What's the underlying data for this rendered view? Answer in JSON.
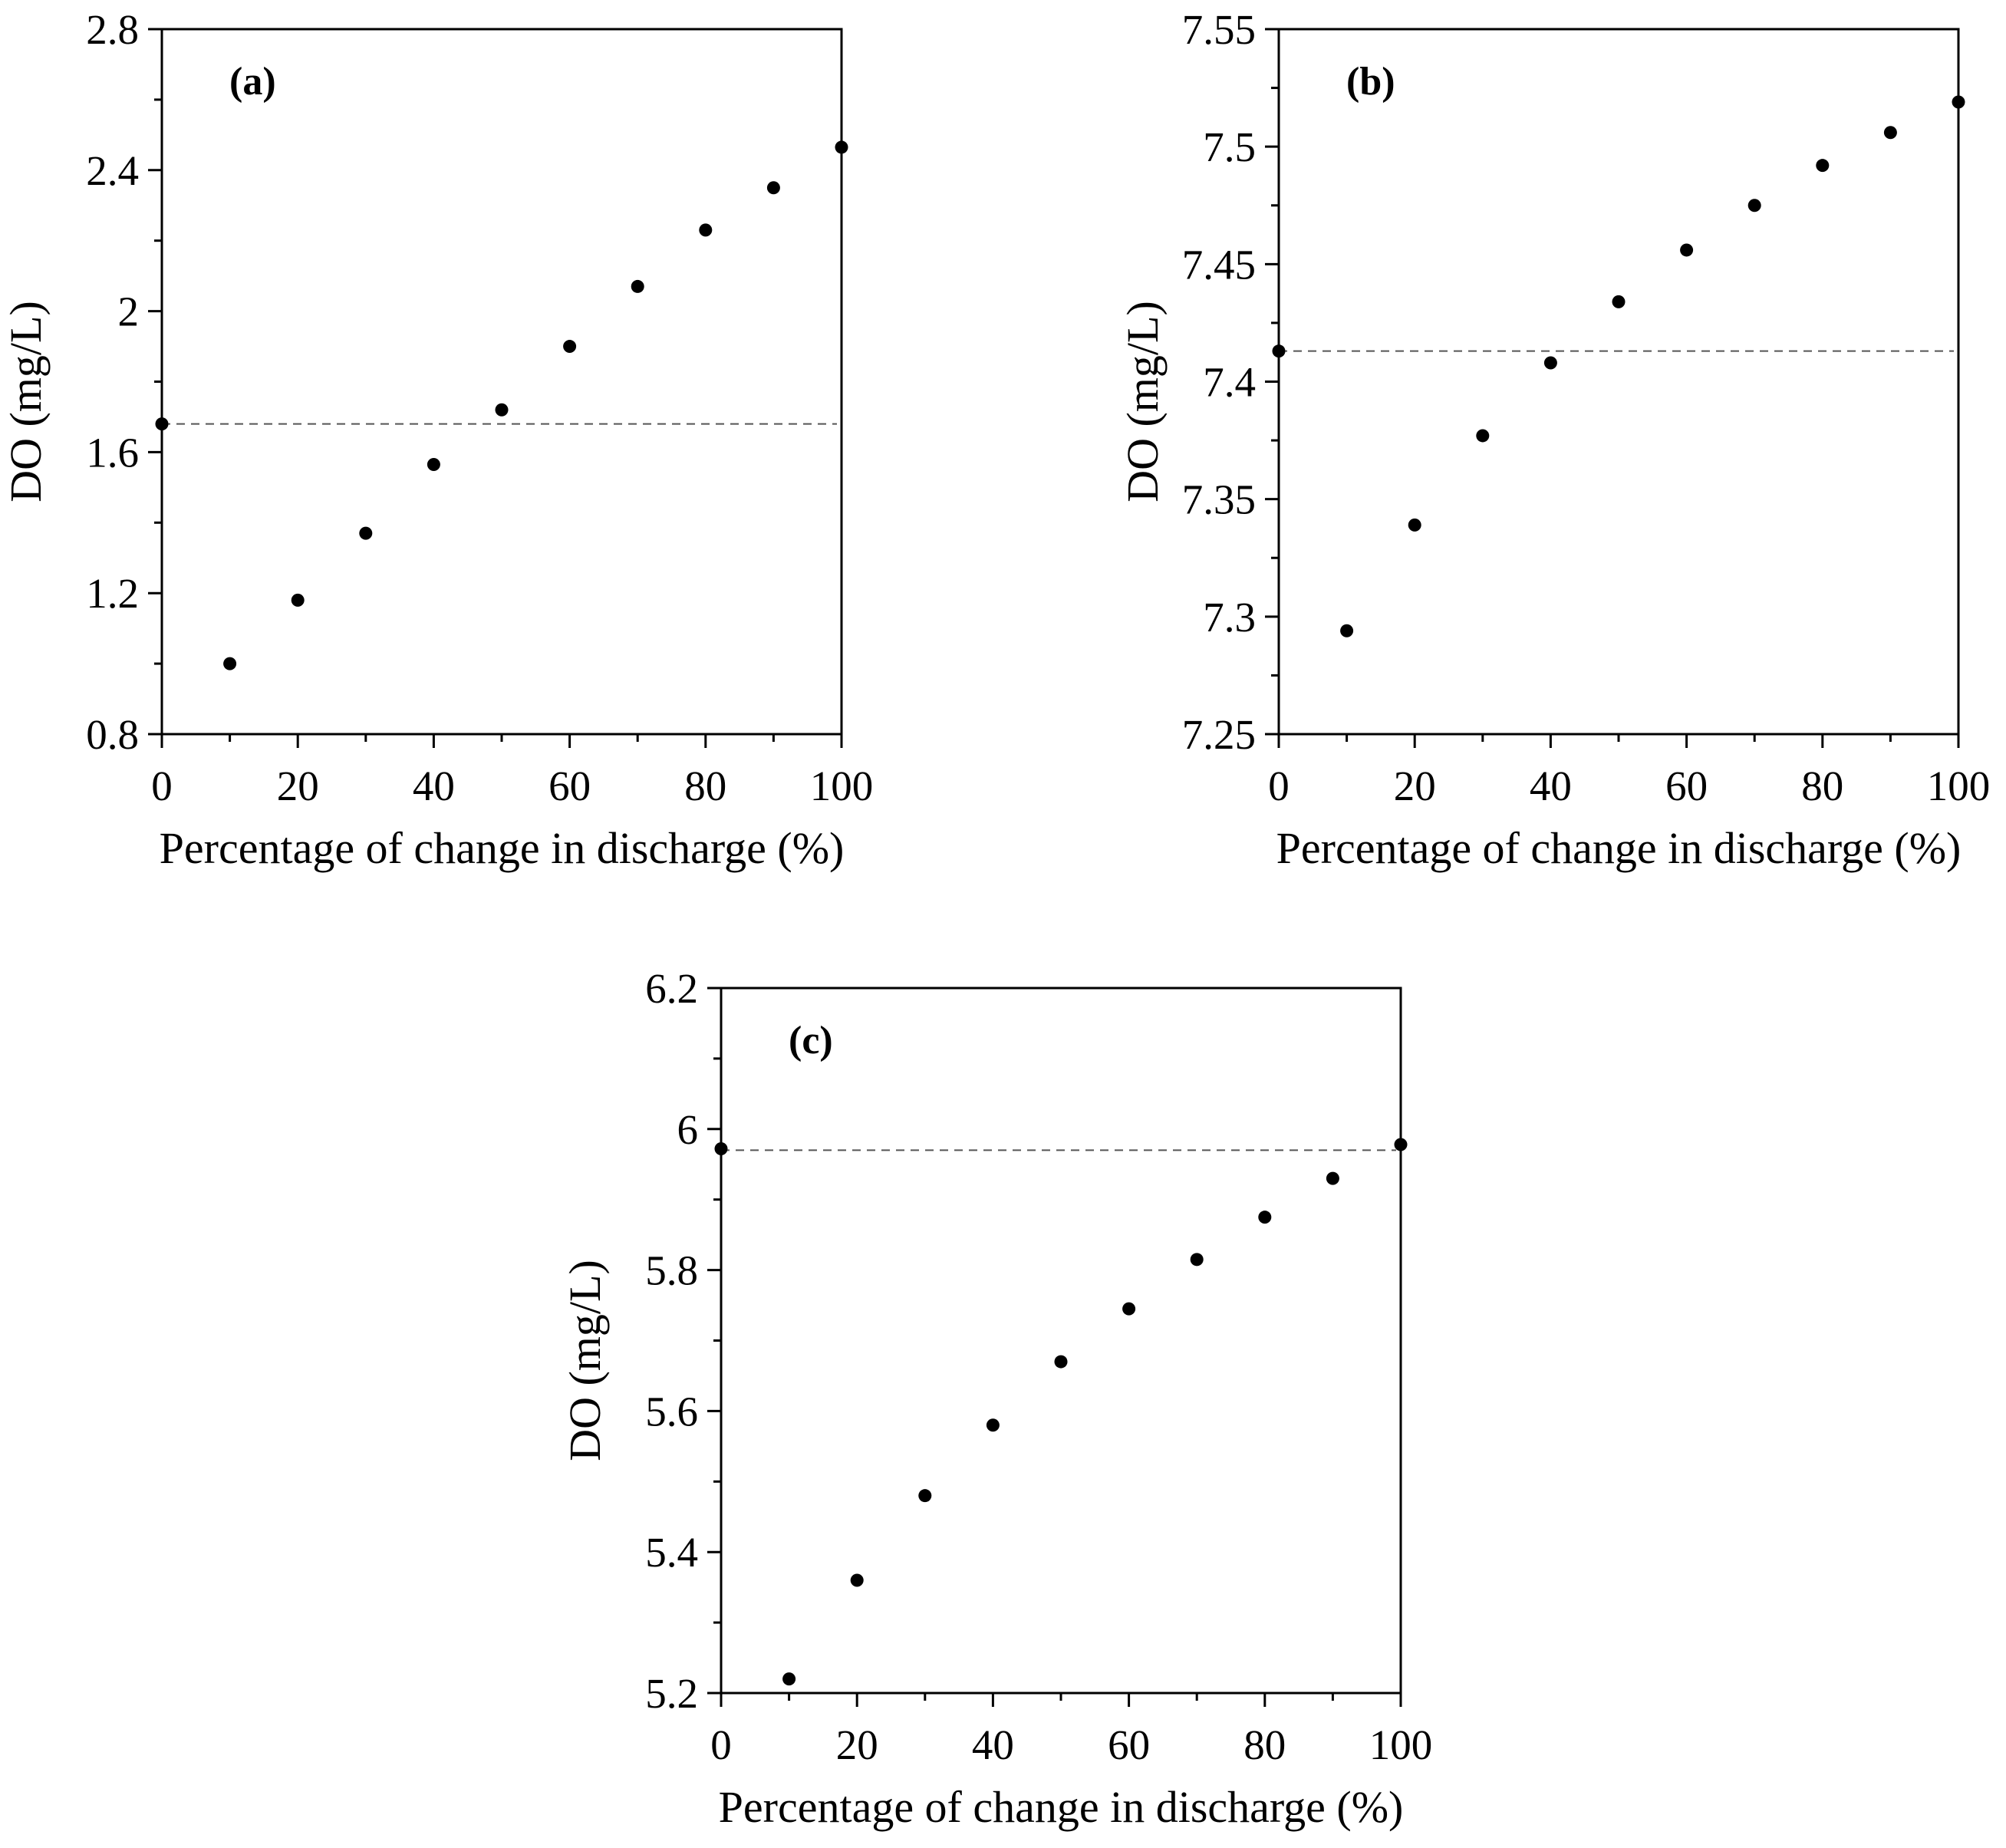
{
  "chart_data": [
    {
      "type": "scatter",
      "panel_label": "(a)",
      "xlabel": "Percentage of change in discharge (%)",
      "ylabel": "DO (mg/L)",
      "xlim": [
        0,
        100
      ],
      "ylim": [
        0.8,
        2.8
      ],
      "xticks": [
        0,
        20,
        40,
        60,
        80,
        100
      ],
      "xtick_labels": [
        "0",
        "20",
        "40",
        "60",
        "80",
        "100"
      ],
      "yticks": [
        0.8,
        1.2,
        1.6,
        2.0,
        2.4,
        2.8
      ],
      "ytick_labels": [
        "0.8",
        "1.2",
        "1.6",
        "2",
        "2.4",
        "2.8"
      ],
      "y_minor_step": 0.2,
      "reference_line_y": 1.68,
      "grid": false,
      "x": [
        0,
        10,
        20,
        30,
        40,
        50,
        60,
        70,
        80,
        90,
        100
      ],
      "y": [
        1.68,
        1.0,
        1.18,
        1.37,
        1.565,
        1.72,
        1.9,
        2.07,
        2.23,
        2.35,
        2.465
      ]
    },
    {
      "type": "scatter",
      "panel_label": "(b)",
      "xlabel": "Percentage of change in discharge (%)",
      "ylabel": "DO (mg/L)",
      "xlim": [
        0,
        100
      ],
      "ylim": [
        7.25,
        7.55
      ],
      "xticks": [
        0,
        20,
        40,
        60,
        80,
        100
      ],
      "xtick_labels": [
        "0",
        "20",
        "40",
        "60",
        "80",
        "100"
      ],
      "yticks": [
        7.25,
        7.3,
        7.35,
        7.4,
        7.45,
        7.5,
        7.55
      ],
      "ytick_labels": [
        "7.25",
        "7.3",
        "7.35",
        "7.4",
        "7.45",
        "7.5",
        "7.55"
      ],
      "y_minor_step": 0.025,
      "reference_line_y": 7.413,
      "grid": false,
      "x": [
        0,
        10,
        20,
        30,
        40,
        50,
        60,
        70,
        80,
        90,
        100
      ],
      "y": [
        7.413,
        7.294,
        7.339,
        7.377,
        7.408,
        7.434,
        7.456,
        7.475,
        7.492,
        7.506,
        7.519
      ]
    },
    {
      "type": "scatter",
      "panel_label": "(c)",
      "xlabel": "Percentage of change in discharge (%)",
      "ylabel": "DO (mg/L)",
      "xlim": [
        0,
        100
      ],
      "ylim": [
        5.2,
        6.2
      ],
      "xticks": [
        0,
        20,
        40,
        60,
        80,
        100
      ],
      "xtick_labels": [
        "0",
        "20",
        "40",
        "60",
        "80",
        "100"
      ],
      "yticks": [
        5.2,
        5.4,
        5.6,
        5.8,
        6.0,
        6.2
      ],
      "ytick_labels": [
        "5.2",
        "5.4",
        "5.6",
        "5.8",
        "6",
        "6.2"
      ],
      "y_minor_step": 0.1,
      "reference_line_y": 5.97,
      "grid": false,
      "x": [
        0,
        10,
        20,
        30,
        40,
        50,
        60,
        70,
        80,
        90,
        100
      ],
      "y": [
        5.972,
        5.22,
        5.36,
        5.48,
        5.58,
        5.67,
        5.745,
        5.815,
        5.875,
        5.93,
        5.978
      ]
    }
  ]
}
